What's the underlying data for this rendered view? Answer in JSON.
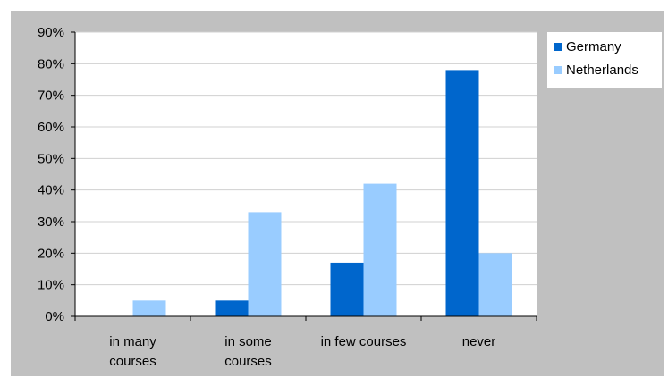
{
  "chart_data": {
    "type": "bar",
    "categories": [
      [
        "in many",
        "courses"
      ],
      [
        "in some",
        "courses"
      ],
      [
        "in few courses"
      ],
      [
        "never"
      ]
    ],
    "series": [
      {
        "name": "Germany",
        "values": [
          0,
          5,
          17,
          78
        ],
        "color": "#0066cc"
      },
      {
        "name": "Netherlands",
        "values": [
          5,
          33,
          42,
          20
        ],
        "color": "#99ccff"
      }
    ],
    "yticks": [
      "0%",
      "10%",
      "20%",
      "30%",
      "40%",
      "50%",
      "60%",
      "70%",
      "80%",
      "90%"
    ],
    "ylim": [
      0,
      90
    ],
    "grid": true,
    "legend_position": "right",
    "title": "",
    "xlabel": "",
    "ylabel": "",
    "plot_background": "#ffffff",
    "chart_background": "#c0c0c0"
  }
}
